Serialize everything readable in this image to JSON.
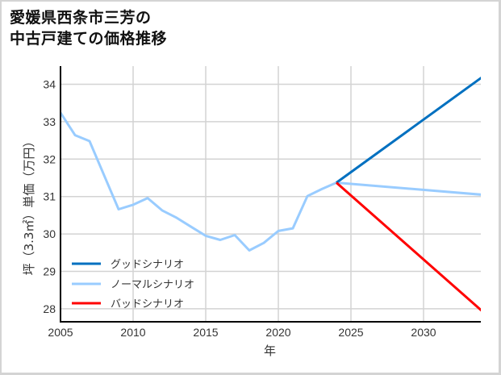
{
  "title": {
    "line1": "愛媛県西条市三芳の",
    "line2": "中古戸建ての価格推移"
  },
  "chart_data": {
    "type": "line",
    "title": "愛媛県西条市三芳の中古戸建ての価格推移",
    "xlabel": "年",
    "ylabel": "坪（3.3㎡）単価（万円）",
    "xlim": [
      2005,
      2034
    ],
    "ylim": [
      27.65,
      34.5
    ],
    "xticks": [
      2005,
      2010,
      2015,
      2020,
      2025,
      2030
    ],
    "yticks": [
      28,
      29,
      30,
      31,
      32,
      33,
      34
    ],
    "grid": true,
    "legend_position": "lower left",
    "series": [
      {
        "name": "グッドシナリオ",
        "color": "#0070c0",
        "x": [
          2024,
          2034
        ],
        "values": [
          31.37,
          34.18
        ]
      },
      {
        "name": "ノーマルシナリオ",
        "color": "#99ccff",
        "x": [
          2005,
          2006,
          2007,
          2008,
          2009,
          2010,
          2011,
          2012,
          2013,
          2014,
          2015,
          2016,
          2017,
          2018,
          2019,
          2020,
          2021,
          2022,
          2023,
          2024,
          2034
        ],
        "values": [
          33.24,
          32.64,
          32.48,
          31.57,
          30.66,
          30.78,
          30.96,
          30.63,
          30.43,
          30.19,
          29.95,
          29.84,
          29.97,
          29.56,
          29.76,
          30.08,
          30.15,
          31.01,
          31.2,
          31.37,
          31.05
        ]
      },
      {
        "name": "バッドシナリオ",
        "color": "#ff0000",
        "x": [
          2024,
          2034
        ],
        "values": [
          31.37,
          27.95
        ]
      }
    ]
  },
  "colors": {
    "grid": "#d3d3d3",
    "axis": "#000000",
    "frame": "#d4d4d4"
  }
}
